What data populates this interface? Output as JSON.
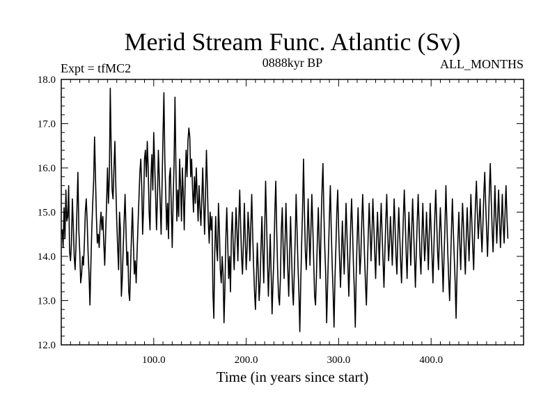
{
  "chart_data": {
    "type": "line",
    "title": "Merid Stream Func. Atlantic (Sv)",
    "subtitle_left": "Expt = tfMC2",
    "subtitle_center": "0888kyr BP",
    "subtitle_right": "ALL_MONTHS",
    "xlabel": "Time (in years since start)",
    "ylabel": "",
    "xlim": [
      0,
      500
    ],
    "ylim": [
      12.0,
      18.0
    ],
    "x_ticks": [
      {
        "value": 100,
        "label": "100.0"
      },
      {
        "value": 200,
        "label": "200.0"
      },
      {
        "value": 300,
        "label": "300.0"
      },
      {
        "value": 400,
        "label": "400.0"
      }
    ],
    "y_ticks": [
      {
        "value": 12.0,
        "label": "12.0"
      },
      {
        "value": 13.0,
        "label": "13.0"
      },
      {
        "value": 14.0,
        "label": "14.0"
      },
      {
        "value": 15.0,
        "label": "15.0"
      },
      {
        "value": 16.0,
        "label": "16.0"
      },
      {
        "value": 17.0,
        "label": "17.0"
      },
      {
        "value": 18.0,
        "label": "18.0"
      }
    ],
    "x_minor_step": 10,
    "y_minor_step": 0.2,
    "grid": false,
    "series": [
      {
        "name": "Merid Stream Func. Atlantic",
        "color": "#000000",
        "x_start": 1,
        "x_step": 1,
        "values": [
          14.6,
          14.2,
          15.1,
          14.4,
          15.5,
          14.8,
          14.9,
          15.6,
          14.1,
          13.9,
          14.3,
          15.3,
          14.7,
          14.0,
          13.7,
          14.3,
          15.1,
          15.9,
          14.6,
          14.1,
          13.4,
          13.6,
          14.0,
          13.8,
          14.3,
          15.0,
          15.3,
          14.8,
          14.1,
          13.6,
          12.9,
          13.8,
          14.6,
          15.2,
          15.7,
          16.7,
          15.8,
          14.9,
          14.3,
          14.5,
          14.2,
          14.7,
          15.0,
          14.6,
          14.9,
          14.3,
          13.8,
          14.5,
          15.2,
          16.0,
          15.2,
          15.8,
          17.8,
          16.4,
          15.5,
          15.3,
          16.0,
          16.6,
          15.6,
          14.8,
          14.2,
          13.7,
          15.0,
          14.6,
          13.1,
          13.5,
          14.2,
          14.8,
          15.4,
          14.6,
          13.8,
          14.1,
          13.2,
          13.0,
          13.8,
          14.5,
          15.1,
          14.3,
          13.6,
          13.9,
          13.4,
          14.1,
          14.7,
          15.3,
          15.9,
          16.2,
          15.6,
          14.5,
          15.1,
          16.2,
          16.4,
          15.8,
          16.6,
          16.0,
          15.0,
          14.6,
          15.8,
          16.3,
          15.5,
          16.8,
          16.1,
          15.4,
          14.6,
          15.3,
          16.4,
          15.8,
          15.2,
          14.5,
          15.6,
          16.7,
          17.7,
          16.2,
          15.4,
          14.6,
          15.2,
          14.4,
          15.8,
          16.0,
          15.1,
          14.2,
          15.3,
          16.1,
          17.6,
          16.0,
          14.8,
          15.5,
          14.9,
          16.2,
          15.6,
          14.8,
          16.0,
          15.4,
          14.6,
          15.7,
          16.4,
          15.8,
          16.6,
          16.9,
          16.7,
          15.8,
          16.2,
          15.5,
          15.0,
          15.8,
          15.2,
          16.0,
          15.4,
          14.8,
          15.6,
          15.1,
          14.7,
          15.3,
          16.0,
          15.2,
          14.5,
          15.4,
          16.4,
          15.6,
          14.8,
          14.3,
          15.0,
          14.6,
          14.9,
          13.2,
          12.6,
          14.1,
          14.9,
          14.2,
          13.9,
          15.2,
          14.6,
          13.7,
          13.4,
          14.0,
          13.6,
          12.5,
          13.3,
          14.4,
          15.1,
          14.3,
          13.5,
          14.0,
          13.2,
          14.5,
          15.0,
          14.2,
          13.7,
          14.4,
          15.1,
          14.6,
          13.9,
          14.8,
          15.5,
          14.7,
          14.0,
          13.6,
          14.3,
          15.2,
          14.4,
          13.7,
          14.2,
          15.0,
          14.6,
          13.9,
          14.7,
          15.4,
          14.5,
          13.8,
          13.2,
          12.8,
          13.5,
          14.3,
          13.7,
          13.0,
          13.4,
          14.2,
          14.9,
          14.1,
          13.4,
          14.6,
          15.7,
          14.8,
          13.9,
          13.1,
          13.8,
          14.5,
          13.6,
          12.7,
          13.4,
          14.0,
          15.0,
          15.7,
          14.6,
          13.7,
          13.1,
          12.9,
          13.5,
          14.6,
          15.1,
          14.2,
          13.5,
          14.3,
          15.2,
          14.4,
          13.7,
          13.1,
          14.0,
          14.9,
          14.1,
          13.3,
          12.9,
          13.6,
          14.4,
          15.4,
          14.6,
          13.8,
          13.2,
          12.3,
          13.4,
          14.3,
          15.1,
          16.2,
          15.0,
          14.1,
          13.7,
          14.4,
          15.3,
          14.5,
          13.8,
          14.6,
          15.4,
          14.7,
          13.9,
          13.1,
          12.9,
          13.6,
          14.4,
          15.1,
          14.3,
          13.5,
          14.7,
          15.5,
          16.1,
          15.0,
          14.2,
          13.6,
          12.5,
          13.3,
          14.1,
          14.9,
          15.6,
          14.6,
          13.8,
          13.2,
          12.4,
          13.5,
          14.2,
          15.0,
          15.5,
          14.6,
          13.9,
          13.3,
          14.0,
          14.8,
          14.2,
          13.6,
          14.4,
          15.2,
          14.5,
          13.8,
          13.1,
          13.9,
          14.7,
          15.3,
          14.6,
          13.8,
          13.2,
          12.4,
          13.6,
          14.4,
          15.1,
          14.3,
          13.6,
          14.0,
          14.8,
          15.4,
          14.7,
          14.0,
          13.4,
          12.9,
          13.7,
          14.5,
          15.2,
          14.6,
          13.9,
          14.5,
          15.3,
          14.7,
          14.1,
          13.5,
          14.3,
          15.0,
          14.4,
          13.8,
          14.6,
          15.2,
          14.5,
          13.9,
          13.3,
          14.1,
          14.8,
          15.4,
          14.6,
          13.9,
          14.3,
          14.9,
          14.4,
          13.8,
          14.5,
          15.3,
          14.7,
          14.0,
          13.6,
          14.4,
          15.1,
          14.5,
          13.9,
          13.4,
          14.2,
          14.9,
          15.5,
          14.8,
          14.1,
          13.5,
          14.3,
          15.0,
          14.4,
          13.8,
          14.6,
          15.3,
          14.6,
          14.0,
          13.3,
          14.1,
          14.8,
          15.4,
          14.7,
          14.0,
          13.6,
          14.4,
          15.2,
          14.5,
          13.9,
          14.3,
          15.0,
          14.4,
          13.7,
          14.5,
          15.2,
          14.6,
          14.0,
          13.4,
          14.2,
          14.9,
          15.5,
          14.8,
          14.1,
          13.7,
          14.5,
          15.1,
          14.5,
          13.9,
          13.2,
          14.0,
          14.7,
          15.6,
          14.8,
          14.1,
          13.5,
          13.0,
          13.8,
          14.6,
          15.3,
          14.6,
          14.0,
          13.4,
          12.6,
          13.6,
          14.4,
          15.0,
          14.3,
          13.7,
          14.5,
          15.2,
          14.7,
          14.1,
          13.6,
          14.4,
          15.1,
          14.5,
          13.9,
          14.6,
          15.4,
          14.8,
          14.2,
          13.7,
          14.5,
          15.2,
          15.7,
          15.0,
          14.4,
          14.8,
          15.3,
          14.6,
          14.1,
          14.7,
          15.4,
          15.9,
          15.2,
          14.6,
          14.0,
          14.7,
          15.5,
          16.1,
          15.3,
          14.6,
          14.1,
          14.8,
          15.6,
          14.9,
          14.3,
          14.9,
          15.5,
          14.8,
          14.2,
          14.8,
          15.4,
          14.7,
          14.3,
          15.0,
          15.6,
          14.9,
          14.4
        ]
      }
    ]
  }
}
